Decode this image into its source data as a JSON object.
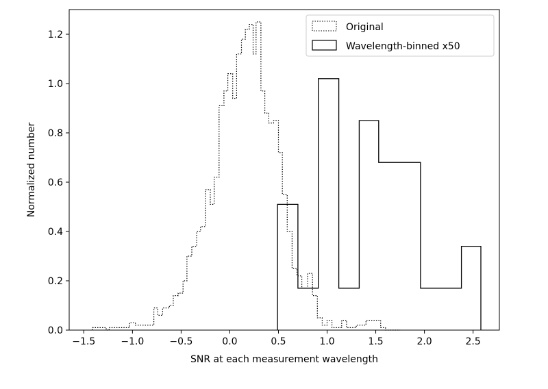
{
  "chart_data": {
    "type": "histogram",
    "xlabel": "SNR at each measurement wavelength",
    "ylabel": "Normalized number",
    "xlim": [
      -1.65,
      2.77
    ],
    "ylim": [
      0.0,
      1.3
    ],
    "xticks": [
      -1.5,
      -1.0,
      -0.5,
      0.0,
      0.5,
      1.0,
      1.5,
      2.0,
      2.5
    ],
    "xtick_labels": [
      "−1.5",
      "−1.0",
      "−0.5",
      "0.0",
      "0.5",
      "1.0",
      "1.5",
      "2.0",
      "2.5"
    ],
    "yticks": [
      0.0,
      0.2,
      0.4,
      0.6,
      0.8,
      1.0,
      1.2
    ],
    "ytick_labels": [
      "0.0",
      "0.2",
      "0.4",
      "0.6",
      "0.8",
      "1.0",
      "1.2"
    ],
    "legend_position": "top-right",
    "grid": false,
    "series": [
      {
        "name": "Original",
        "style": "dotted",
        "color": "#000000",
        "bin_edges": [
          -1.41,
          -1.27,
          -1.24,
          -1.03,
          -0.97,
          -0.9,
          -0.78,
          -0.74,
          -0.69,
          -0.62,
          -0.58,
          -0.53,
          -0.48,
          -0.44,
          -0.39,
          -0.34,
          -0.3,
          -0.25,
          -0.2,
          -0.16,
          -0.11,
          -0.06,
          -0.02,
          0.03,
          0.07,
          0.12,
          0.16,
          0.2,
          0.24,
          0.27,
          0.32,
          0.36,
          0.4,
          0.45,
          0.5,
          0.54,
          0.59,
          0.64,
          0.69,
          0.74,
          0.8,
          0.85,
          0.9,
          0.95,
          1.0,
          1.05,
          1.15,
          1.2,
          1.3,
          1.4,
          1.55,
          1.6,
          1.75
        ],
        "values": [
          0.01,
          0.0,
          0.01,
          0.03,
          0.02,
          0.02,
          0.09,
          0.06,
          0.09,
          0.1,
          0.14,
          0.15,
          0.2,
          0.3,
          0.34,
          0.4,
          0.42,
          0.57,
          0.51,
          0.62,
          0.91,
          0.97,
          1.04,
          0.94,
          1.12,
          1.18,
          1.22,
          1.24,
          1.12,
          1.25,
          0.97,
          0.88,
          0.84,
          0.85,
          0.72,
          0.55,
          0.4,
          0.25,
          0.22,
          0.17,
          0.23,
          0.14,
          0.05,
          0.02,
          0.04,
          0.01,
          0.04,
          0.01,
          0.02,
          0.04,
          0.01,
          0.0
        ]
      },
      {
        "name": "Wavelength-binned x50",
        "style": "solid",
        "color": "#000000",
        "bin_edges": [
          0.49,
          0.7,
          0.91,
          1.12,
          1.33,
          1.53,
          1.96,
          2.38,
          2.58
        ],
        "values": [
          0.51,
          0.17,
          1.02,
          0.17,
          0.85,
          0.68,
          0.17,
          0.34
        ]
      }
    ]
  }
}
